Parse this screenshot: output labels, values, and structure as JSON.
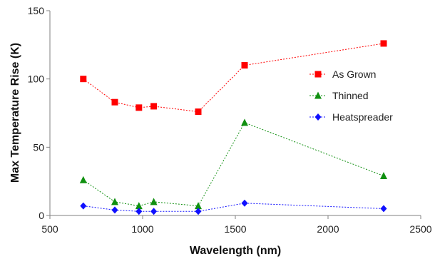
{
  "chart_data": {
    "type": "line",
    "xlabel": "Wavelength (nm)",
    "ylabel": "Max Temperature Rise (K)",
    "xlim": [
      500,
      2500
    ],
    "ylim": [
      0,
      150
    ],
    "x_ticks": [
      500,
      1000,
      1500,
      2000,
      2500
    ],
    "y_ticks": [
      0,
      50,
      100,
      150
    ],
    "grid": false,
    "legend_position": "right",
    "series": [
      {
        "name": "As Grown",
        "color": "#ff0000",
        "marker": "square",
        "x": [
          680,
          850,
          980,
          1060,
          1300,
          1550,
          2300
        ],
        "values": [
          100,
          83,
          79,
          80,
          76,
          110,
          126
        ]
      },
      {
        "name": "Thinned",
        "color": "#109010",
        "marker": "triangle",
        "x": [
          680,
          850,
          980,
          1060,
          1300,
          1550,
          2300
        ],
        "values": [
          26,
          10,
          7,
          10,
          7,
          68,
          29
        ]
      },
      {
        "name": "Heatspreader",
        "color": "#1010ff",
        "marker": "diamond",
        "x": [
          680,
          850,
          980,
          1060,
          1300,
          1550,
          2300
        ],
        "values": [
          7,
          4,
          3,
          3,
          3,
          9,
          5
        ]
      }
    ]
  }
}
